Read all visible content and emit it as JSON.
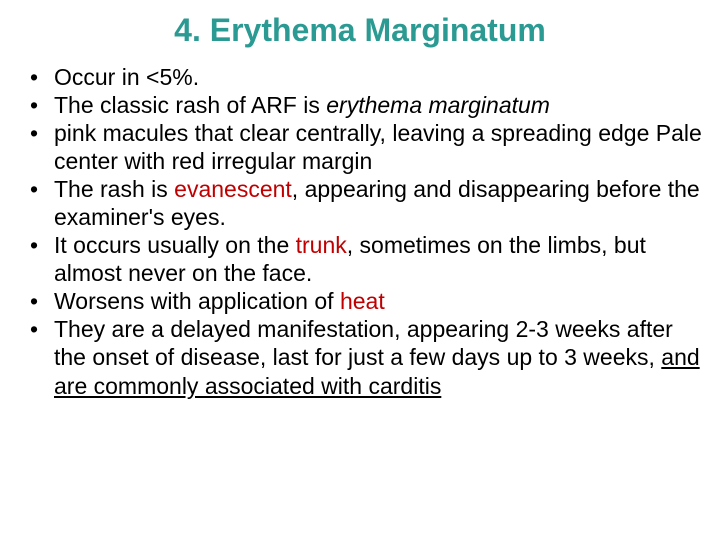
{
  "title": "4. Erythema Marginatum",
  "colors": {
    "title": "#2b9a92",
    "highlight": "#c00000",
    "text": "#000000",
    "background": "#ffffff"
  },
  "typography": {
    "title_fontsize": 32,
    "body_fontsize": 23,
    "font_family": "Arial"
  },
  "bullets": [
    {
      "pre": " Occur in <5%."
    },
    {
      "pre": "The classic rash of ARF is ",
      "italic": "erythema marginatum"
    },
    {
      "pre": " pink macules that clear centrally, leaving a spreading edge Pale center with red irregular margin"
    },
    {
      "pre": "The rash is ",
      "hl": "evanescent",
      "post": ", appearing and disappearing before the examiner's eyes."
    },
    {
      "pre": "It occurs usually on the ",
      "hl": "trunk",
      "post": ", sometimes on the limbs, but almost never on the face."
    },
    {
      "pre": "Worsens with application of ",
      "hl": "heat"
    },
    {
      "pre": "They are a delayed manifestation, appearing 2-3 weeks after the onset of disease, last for just a few days up to 3 weeks, ",
      "u": "and are commonly associated with carditis"
    }
  ]
}
